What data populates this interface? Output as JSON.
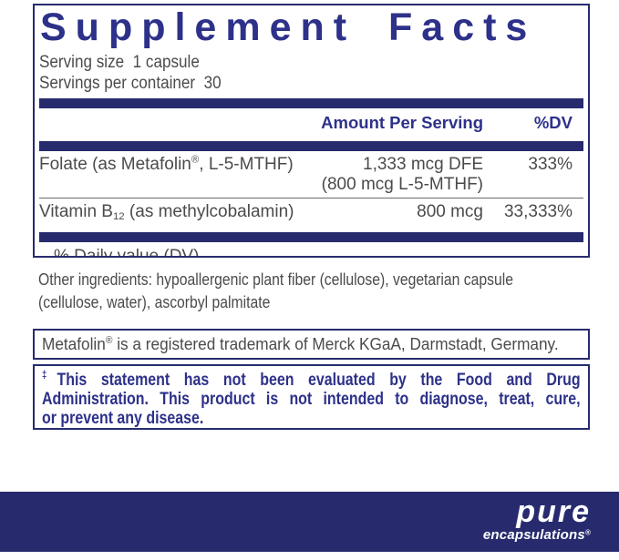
{
  "colors": {
    "brand_navy": "#272B6E",
    "text_navy": "#2D3189",
    "text_gray": "#4B4B4D",
    "hairline_gray": "#6B6B6D",
    "logo_white": "#FFFFFF"
  },
  "supplement_panel": {
    "title": "Supplement Facts",
    "serving_size_line": "Serving size  1 capsule",
    "servings_per_container_line": "Servings per container  30",
    "column_headers": {
      "amount": "Amount Per Serving",
      "dv": "%DV"
    },
    "rows": [
      {
        "name_prefix": "Folate (as Metafolin",
        "name_sup": "®",
        "name_suffix": ", L-5-MTHF)",
        "amount_line_1": "1,333 mcg DFE",
        "amount_line_2": "(800 mcg L-5-MTHF)",
        "dv": "333%"
      },
      {
        "name_prefix": "Vitamin B",
        "name_sub": "12",
        "name_suffix": " (as methylcobalamin)",
        "amount_line_1": "800 mcg",
        "dv": "33,333%"
      }
    ],
    "footnote": "% Daily value (DV)"
  },
  "other_ingredients": {
    "lines": [
      "Other ingredients: hypoallergenic plant fiber (cellulose), vegetarian capsule",
      "(cellulose, water), ascorbyl palmitate"
    ]
  },
  "trademark_note": {
    "prefix": "Metafolin",
    "sup": "®",
    "suffix": " is a registered trademark of Merck KGaA, Darmstadt, Germany."
  },
  "disclaimer": {
    "dagger": "‡",
    "lines": [
      "This statement has not been evaluated by the Food and Drug",
      "Administration. This product is not intended to diagnose, treat, cure,",
      "or prevent any disease."
    ]
  },
  "brand": {
    "wordmark": "pure",
    "wordmark_sub": "encapsulations",
    "registered": "®"
  }
}
